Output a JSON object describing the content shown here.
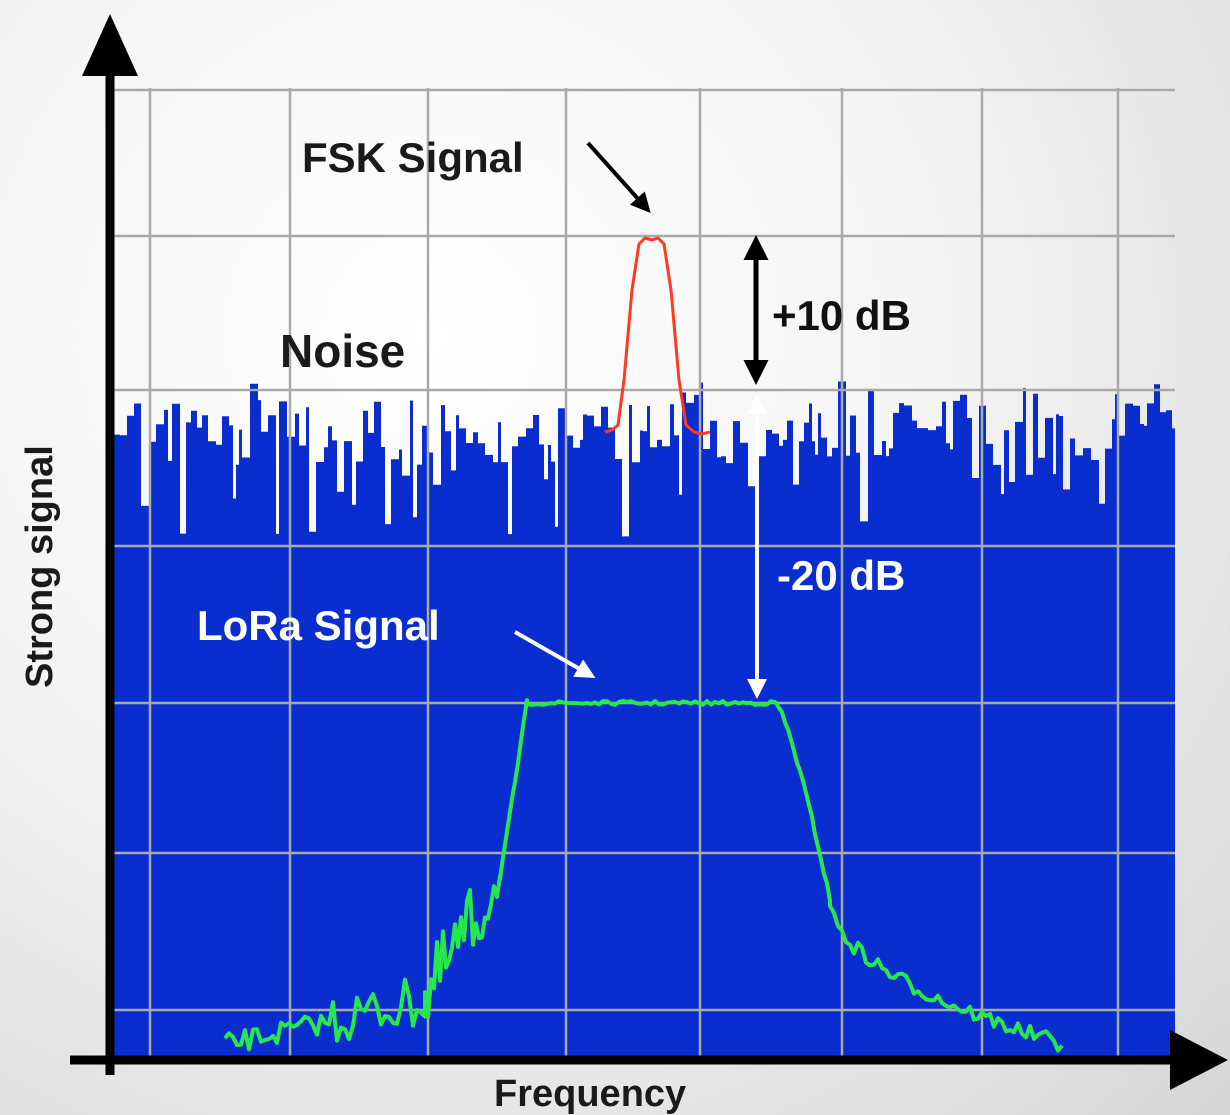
{
  "labels": {
    "fsk_signal": "FSK Signal",
    "noise": "Noise",
    "plus_10db": "+10 dB",
    "minus_20db": "-20 dB",
    "lora_signal": "LoRa Signal",
    "y_axis": "Strong signal",
    "x_axis": "Frequency"
  },
  "colors": {
    "noise_fill": "#0a2dd0",
    "grid": "#a9a9a9",
    "fsk_trace": "#ff3b1f",
    "lora_trace": "#25e84a",
    "axis": "#000000",
    "white_annotation": "#ffffff"
  }
}
